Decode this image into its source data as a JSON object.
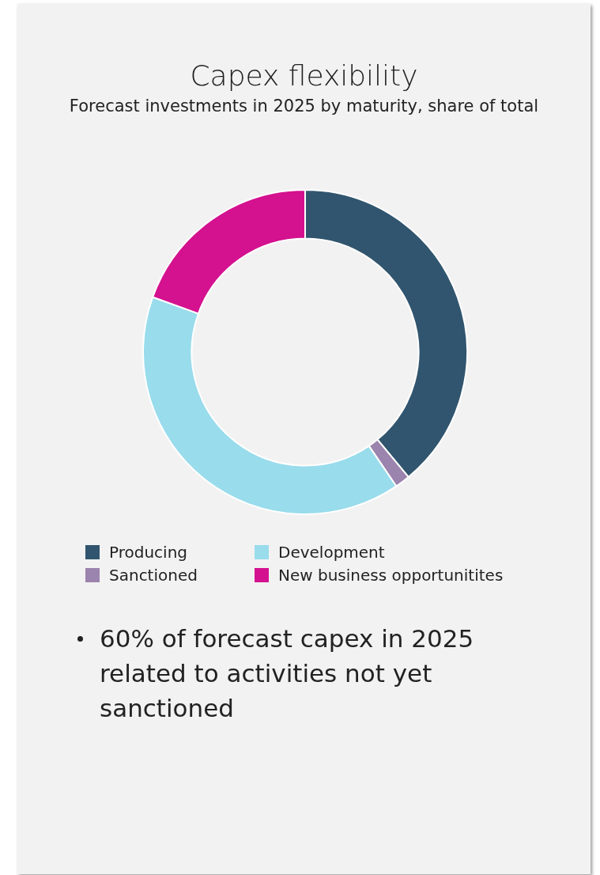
{
  "chart_data": {
    "type": "donut",
    "title": "Capex flexibility",
    "subtitle": "Forecast investments in 2025 by maturity, share of total",
    "categories": [
      "Producing",
      "Sanctioned",
      "Development",
      "New business opportunitites"
    ],
    "values": [
      39,
      1.5,
      40,
      19.5
    ],
    "colors": [
      "#31556e",
      "#9b84ad",
      "#99dcec",
      "#d4118f"
    ],
    "legend": "bottom",
    "annotations": [
      "60% of forecast capex in 2025 related to activities not yet sanctioned"
    ]
  }
}
